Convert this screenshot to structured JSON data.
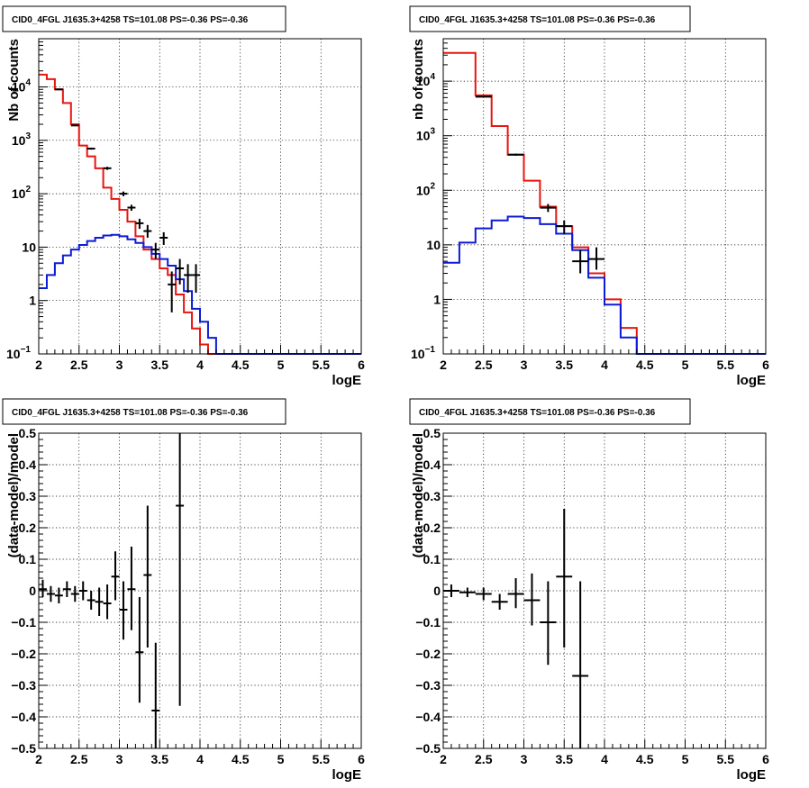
{
  "chart_data": [
    {
      "id": "p1",
      "type": "line",
      "title": "CID0_4FGL J1635.3+4258 TS=101.08 PS=-0.36 PS=-0.36",
      "xlabel": "logE",
      "ylabel": "Nb of counts",
      "xlim": [
        2,
        6
      ],
      "ylim": [
        0.1,
        80000
      ],
      "yscale": "log",
      "grid": true,
      "xticks": [
        "2",
        "2.5",
        "3",
        "3.5",
        "4",
        "4.5",
        "5",
        "5.5",
        "6"
      ],
      "yticks": [
        {
          "v": 0.1,
          "base": "10",
          "exp": "−1"
        },
        {
          "v": 1,
          "base": "1",
          "exp": ""
        },
        {
          "v": 10,
          "base": "10",
          "exp": ""
        },
        {
          "v": 100,
          "base": "10",
          "exp": "2"
        },
        {
          "v": 1000,
          "base": "10",
          "exp": "3"
        },
        {
          "v": 10000,
          "base": "10",
          "exp": "4"
        }
      ],
      "series": [
        {
          "color": "#e8150f",
          "binw": 0.1,
          "x0": 2.0,
          "values": [
            17000,
            14000,
            9000,
            5000,
            2000,
            800,
            500,
            300,
            130,
            80,
            50,
            30,
            16,
            9,
            6,
            4,
            3,
            1.3,
            0.6,
            0.3,
            0.15,
            0.1,
            0.1,
            0.1,
            0.1,
            0.1,
            0.1,
            0.1,
            0.1,
            0.1,
            0.1,
            0.1,
            0.1,
            0.1,
            0.1,
            0.1,
            0.1,
            0.1,
            0.1,
            0.1
          ]
        },
        {
          "color": "#0c1bd6",
          "binw": 0.1,
          "x0": 2.0,
          "values": [
            1.7,
            3,
            5,
            7,
            9,
            11,
            13,
            15,
            16.5,
            17,
            16,
            14,
            12,
            10,
            7.5,
            6,
            4.5,
            2.5,
            1.5,
            0.7,
            0.4,
            0.2,
            0.1,
            0.1,
            0.1,
            0.1,
            0.1,
            0.1,
            0.1,
            0.1,
            0.1,
            0.1,
            0.1,
            0.1,
            0.1,
            0.1,
            0.1,
            0.1,
            0.1,
            0.1
          ]
        }
      ],
      "points": [
        {
          "x": 2.25,
          "y": 9000,
          "xe": 0.05,
          "ylo": 8800,
          "yhi": 9200
        },
        {
          "x": 2.45,
          "y": 1900,
          "xe": 0.05,
          "ylo": 1850,
          "yhi": 1950
        },
        {
          "x": 2.65,
          "y": 700,
          "xe": 0.05,
          "ylo": 670,
          "yhi": 730
        },
        {
          "x": 2.85,
          "y": 300,
          "xe": 0.05,
          "ylo": 280,
          "yhi": 320
        },
        {
          "x": 3.05,
          "y": 100,
          "xe": 0.05,
          "ylo": 90,
          "yhi": 110
        },
        {
          "x": 3.15,
          "y": 55,
          "xe": 0.05,
          "ylo": 48,
          "yhi": 62
        },
        {
          "x": 3.25,
          "y": 28,
          "xe": 0.05,
          "ylo": 22,
          "yhi": 34
        },
        {
          "x": 3.35,
          "y": 20,
          "xe": 0.05,
          "ylo": 15,
          "yhi": 26
        },
        {
          "x": 3.45,
          "y": 9,
          "xe": 0.05,
          "ylo": 6,
          "yhi": 12
        },
        {
          "x": 3.55,
          "y": 15,
          "xe": 0.05,
          "ylo": 11,
          "yhi": 19
        },
        {
          "x": 3.65,
          "y": 2,
          "xe": 0.05,
          "ylo": 0.6,
          "yhi": 3.5
        },
        {
          "x": 3.75,
          "y": 4,
          "xe": 0.05,
          "ylo": 2,
          "yhi": 6
        },
        {
          "x": 3.85,
          "y": 3,
          "xe": 0.05,
          "ylo": 1.4,
          "yhi": 4.8
        },
        {
          "x": 3.95,
          "y": 3,
          "xe": 0.05,
          "ylo": 1.4,
          "yhi": 4.8
        }
      ]
    },
    {
      "id": "p2",
      "type": "line",
      "title": "CID0_4FGL J1635.3+4258 TS=101.08 PS=-0.36 PS=-0.36",
      "xlabel": "logE",
      "ylabel": "nb of counts",
      "xlim": [
        2,
        6
      ],
      "ylim": [
        0.1,
        60000
      ],
      "yscale": "log",
      "grid": true,
      "xticks": [
        "2",
        "2.5",
        "3",
        "3.5",
        "4",
        "4.5",
        "5",
        "5.5",
        "6"
      ],
      "yticks": [
        {
          "v": 0.1,
          "base": "10",
          "exp": "−1"
        },
        {
          "v": 1,
          "base": "1",
          "exp": ""
        },
        {
          "v": 10,
          "base": "10",
          "exp": ""
        },
        {
          "v": 100,
          "base": "10",
          "exp": "2"
        },
        {
          "v": 1000,
          "base": "10",
          "exp": "3"
        },
        {
          "v": 10000,
          "base": "10",
          "exp": "4"
        }
      ],
      "series": [
        {
          "color": "#e8150f",
          "binw": 0.2,
          "x0": 2.0,
          "values": [
            33000,
            33000,
            5500,
            1500,
            450,
            150,
            50,
            22,
            9,
            3,
            1,
            0.3,
            0.1,
            0.1,
            0.1,
            0.1,
            0.1,
            0.1,
            0.1,
            0.1
          ]
        },
        {
          "color": "#0c1bd6",
          "binw": 0.2,
          "x0": 2.0,
          "values": [
            4.7,
            11,
            20,
            28,
            33,
            31,
            24,
            16,
            8,
            2.5,
            0.8,
            0.2,
            0.1,
            0.1,
            0.1,
            0.1,
            0.1,
            0.1,
            0.1,
            0.1
          ]
        }
      ],
      "points": [
        {
          "x": 2.5,
          "y": 5200,
          "xe": 0.1,
          "ylo": 5050,
          "yhi": 5350
        },
        {
          "x": 2.9,
          "y": 450,
          "xe": 0.1,
          "ylo": 430,
          "yhi": 470
        },
        {
          "x": 3.3,
          "y": 48,
          "xe": 0.1,
          "ylo": 40,
          "yhi": 56
        },
        {
          "x": 3.5,
          "y": 22,
          "xe": 0.1,
          "ylo": 16,
          "yhi": 28
        },
        {
          "x": 3.7,
          "y": 5,
          "xe": 0.1,
          "ylo": 3,
          "yhi": 8
        },
        {
          "x": 3.9,
          "y": 5.5,
          "xe": 0.1,
          "ylo": 3.5,
          "yhi": 9
        }
      ]
    },
    {
      "id": "p3",
      "type": "scatter",
      "title": "CID0_4FGL J1635.3+4258 TS=101.08 PS=-0.36 PS=-0.36",
      "xlabel": "logE",
      "ylabel": "(data-model)/model",
      "xlim": [
        2,
        6
      ],
      "ylim": [
        -0.5,
        0.5
      ],
      "yscale": "linear",
      "grid": true,
      "xticks": [
        "2",
        "2.5",
        "3",
        "3.5",
        "4",
        "4.5",
        "5",
        "5.5",
        "6"
      ],
      "yticks": [
        {
          "v": 0.5,
          "base": "0.5",
          "exp": ""
        },
        {
          "v": 0.4,
          "base": "0.4",
          "exp": ""
        },
        {
          "v": 0.3,
          "base": "0.3",
          "exp": ""
        },
        {
          "v": 0.2,
          "base": "0.2",
          "exp": ""
        },
        {
          "v": 0.1,
          "base": "0.1",
          "exp": ""
        },
        {
          "v": 0,
          "base": "0",
          "exp": ""
        },
        {
          "v": -0.1,
          "base": "−0.1",
          "exp": ""
        },
        {
          "v": -0.2,
          "base": "−0.2",
          "exp": ""
        },
        {
          "v": -0.3,
          "base": "−0.3",
          "exp": ""
        },
        {
          "v": -0.4,
          "base": "−0.4",
          "exp": ""
        },
        {
          "v": -0.5,
          "base": "−0.5",
          "exp": ""
        }
      ],
      "series": [],
      "points": [
        {
          "x": 2.05,
          "y": 0.005,
          "xe": 0.05,
          "ylo": -0.02,
          "yhi": 0.035
        },
        {
          "x": 2.15,
          "y": -0.01,
          "xe": 0.05,
          "ylo": -0.035,
          "yhi": 0.015
        },
        {
          "x": 2.25,
          "y": -0.015,
          "xe": 0.05,
          "ylo": -0.04,
          "yhi": 0.01
        },
        {
          "x": 2.35,
          "y": 0.005,
          "xe": 0.05,
          "ylo": -0.02,
          "yhi": 0.03
        },
        {
          "x": 2.45,
          "y": -0.01,
          "xe": 0.05,
          "ylo": -0.035,
          "yhi": 0.015
        },
        {
          "x": 2.55,
          "y": 0.0,
          "xe": 0.05,
          "ylo": -0.03,
          "yhi": 0.03
        },
        {
          "x": 2.65,
          "y": -0.03,
          "xe": 0.05,
          "ylo": -0.06,
          "yhi": 0.0
        },
        {
          "x": 2.75,
          "y": -0.035,
          "xe": 0.05,
          "ylo": -0.08,
          "yhi": 0.01
        },
        {
          "x": 2.85,
          "y": -0.04,
          "xe": 0.05,
          "ylo": -0.09,
          "yhi": 0.02
        },
        {
          "x": 2.95,
          "y": 0.045,
          "xe": 0.05,
          "ylo": -0.03,
          "yhi": 0.125
        },
        {
          "x": 3.05,
          "y": -0.06,
          "xe": 0.05,
          "ylo": -0.155,
          "yhi": 0.03
        },
        {
          "x": 3.15,
          "y": 0.005,
          "xe": 0.05,
          "ylo": -0.125,
          "yhi": 0.14
        },
        {
          "x": 3.25,
          "y": -0.195,
          "xe": 0.05,
          "ylo": -0.355,
          "yhi": -0.02
        },
        {
          "x": 3.35,
          "y": 0.05,
          "xe": 0.05,
          "ylo": -0.18,
          "yhi": 0.27
        },
        {
          "x": 3.45,
          "y": -0.38,
          "xe": 0.05,
          "ylo": -0.5,
          "yhi": -0.165
        },
        {
          "x": 3.75,
          "y": 0.27,
          "xe": 0.05,
          "ylo": -0.365,
          "yhi": 0.5
        }
      ]
    },
    {
      "id": "p4",
      "type": "scatter",
      "title": "CID0_4FGL J1635.3+4258 TS=101.08 PS=-0.36 PS=-0.36",
      "xlabel": "logE",
      "ylabel": "(data-model)/model",
      "xlim": [
        2,
        6
      ],
      "ylim": [
        -0.5,
        0.5
      ],
      "yscale": "linear",
      "grid": true,
      "xticks": [
        "2",
        "2.5",
        "3",
        "3.5",
        "4",
        "4.5",
        "5",
        "5.5",
        "6"
      ],
      "yticks": [
        {
          "v": 0.5,
          "base": "0.5",
          "exp": ""
        },
        {
          "v": 0.4,
          "base": "0.4",
          "exp": ""
        },
        {
          "v": 0.3,
          "base": "0.3",
          "exp": ""
        },
        {
          "v": 0.2,
          "base": "0.2",
          "exp": ""
        },
        {
          "v": 0.1,
          "base": "0.1",
          "exp": ""
        },
        {
          "v": 0,
          "base": "0",
          "exp": ""
        },
        {
          "v": -0.1,
          "base": "−0.1",
          "exp": ""
        },
        {
          "v": -0.2,
          "base": "−0.2",
          "exp": ""
        },
        {
          "v": -0.3,
          "base": "−0.3",
          "exp": ""
        },
        {
          "v": -0.4,
          "base": "−0.4",
          "exp": ""
        },
        {
          "v": -0.5,
          "base": "−0.5",
          "exp": ""
        }
      ],
      "series": [],
      "points": [
        {
          "x": 2.1,
          "y": 0.0,
          "xe": 0.1,
          "ylo": -0.02,
          "yhi": 0.02
        },
        {
          "x": 2.3,
          "y": -0.005,
          "xe": 0.1,
          "ylo": -0.02,
          "yhi": 0.01
        },
        {
          "x": 2.5,
          "y": -0.01,
          "xe": 0.1,
          "ylo": -0.03,
          "yhi": 0.01
        },
        {
          "x": 2.7,
          "y": -0.035,
          "xe": 0.1,
          "ylo": -0.06,
          "yhi": -0.01
        },
        {
          "x": 2.9,
          "y": -0.01,
          "xe": 0.1,
          "ylo": -0.055,
          "yhi": 0.04
        },
        {
          "x": 3.1,
          "y": -0.03,
          "xe": 0.1,
          "ylo": -0.11,
          "yhi": 0.055
        },
        {
          "x": 3.3,
          "y": -0.1,
          "xe": 0.1,
          "ylo": -0.235,
          "yhi": 0.03
        },
        {
          "x": 3.5,
          "y": 0.045,
          "xe": 0.1,
          "ylo": -0.18,
          "yhi": 0.26
        },
        {
          "x": 3.7,
          "y": -0.27,
          "xe": 0.1,
          "ylo": -0.5,
          "yhi": 0.03
        }
      ]
    }
  ]
}
